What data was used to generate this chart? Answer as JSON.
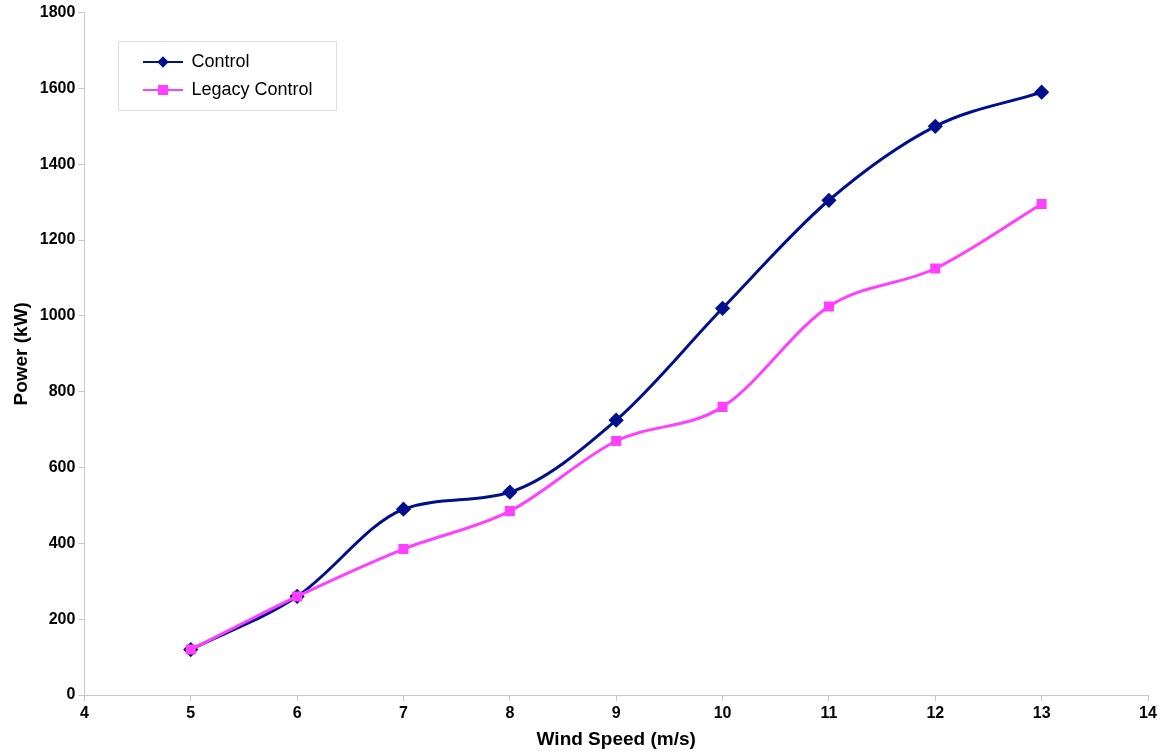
{
  "chart_data": {
    "type": "line",
    "xlabel": "Wind Speed (m/s)",
    "ylabel": "Power (kW)",
    "x": [
      5,
      6,
      7,
      8,
      9,
      10,
      11,
      12,
      13
    ],
    "series": [
      {
        "name": "Control",
        "color": "#00108c",
        "marker": "diamond",
        "values": [
          120,
          260,
          490,
          535,
          725,
          1020,
          1305,
          1500,
          1590
        ]
      },
      {
        "name": "Legacy Control",
        "color": "#ff40ff",
        "marker": "square",
        "values": [
          120,
          260,
          385,
          485,
          670,
          760,
          1025,
          1125,
          1295
        ]
      }
    ],
    "xlim": [
      4,
      14
    ],
    "xticks": [
      4,
      5,
      6,
      7,
      8,
      9,
      10,
      11,
      12,
      13,
      14
    ],
    "ylim": [
      0,
      1800
    ],
    "yticks": [
      0,
      200,
      400,
      600,
      800,
      1000,
      1200,
      1400,
      1600,
      1800
    ],
    "grid": false,
    "legend": "top left"
  }
}
